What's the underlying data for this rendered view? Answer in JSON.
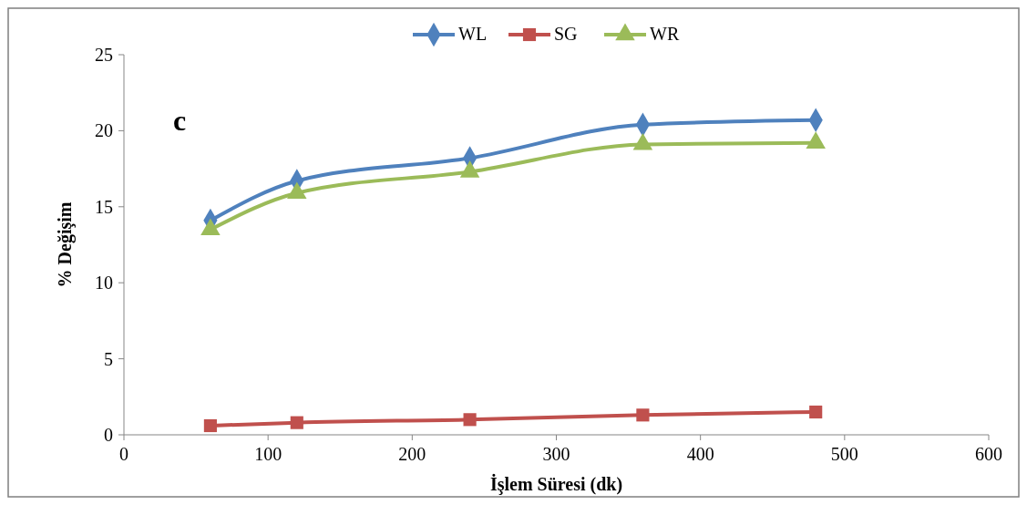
{
  "chart_data": {
    "type": "line",
    "xlabel": "İşlem Süresi (dk)",
    "ylabel": "% Değişim",
    "annotations": [
      "c"
    ],
    "x": [
      60,
      120,
      240,
      360,
      480
    ],
    "series": [
      {
        "name": "WL",
        "color": "#4f81bd",
        "marker": "diamond",
        "values": [
          14.1,
          16.7,
          18.2,
          20.4,
          20.7
        ]
      },
      {
        "name": "SG",
        "color": "#c0504d",
        "marker": "square",
        "values": [
          0.6,
          0.8,
          1.0,
          1.3,
          1.5
        ]
      },
      {
        "name": "WR",
        "color": "#9bbb59",
        "marker": "triangle",
        "values": [
          13.5,
          15.9,
          17.3,
          19.1,
          19.2
        ]
      }
    ],
    "xlim": [
      0,
      600
    ],
    "xticks": [
      0,
      100,
      200,
      300,
      400,
      500,
      600
    ],
    "ylim": [
      0,
      25
    ],
    "yticks": [
      0,
      5,
      10,
      15,
      20,
      25
    ],
    "grid": false,
    "legend": "top"
  }
}
